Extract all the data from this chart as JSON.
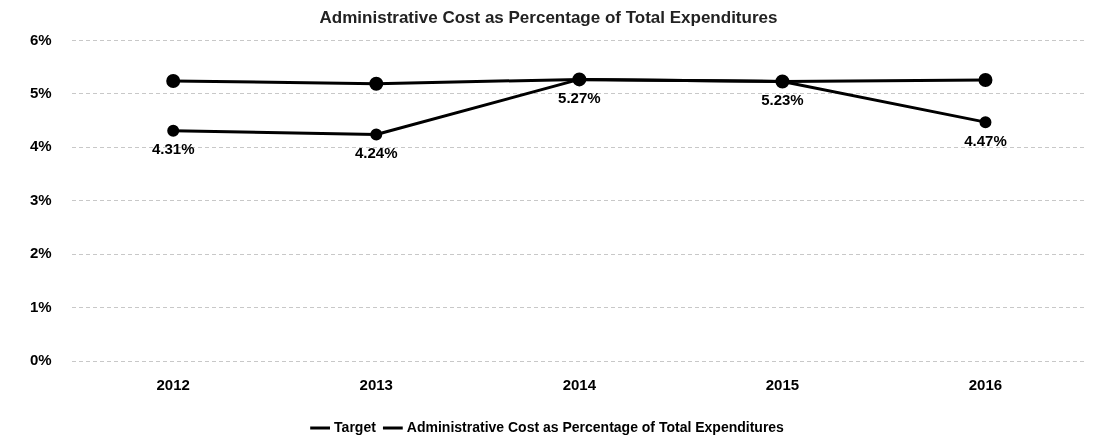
{
  "chart_data": {
    "type": "line",
    "title": "Administrative Cost as Percentage of Total Expenditures",
    "categories": [
      "2012",
      "2013",
      "2014",
      "2015",
      "2016"
    ],
    "series": [
      {
        "name": "Target",
        "color": "#000000",
        "values": [
          5.24,
          5.19,
          5.27,
          5.23,
          5.26
        ]
      },
      {
        "name": "Administrative Cost as Percentage of Total Expenditures",
        "color": "#000000",
        "values": [
          4.31,
          4.24,
          5.27,
          5.23,
          4.47
        ],
        "value_labels": [
          "4.31%",
          "4.24%",
          "5.27%",
          "5.23%",
          "4.47%"
        ]
      }
    ],
    "ylim": [
      0,
      6
    ],
    "yticks": [
      {
        "value": 0,
        "label": "0%"
      },
      {
        "value": 1,
        "label": "1%"
      },
      {
        "value": 2,
        "label": "2%"
      },
      {
        "value": 3,
        "label": "3%"
      },
      {
        "value": 4,
        "label": "4%"
      },
      {
        "value": 5,
        "label": "5%"
      },
      {
        "value": 6,
        "label": "6%"
      }
    ],
    "grid": "y",
    "legend": "bottom",
    "marker": "circle",
    "line_style": "solid"
  }
}
